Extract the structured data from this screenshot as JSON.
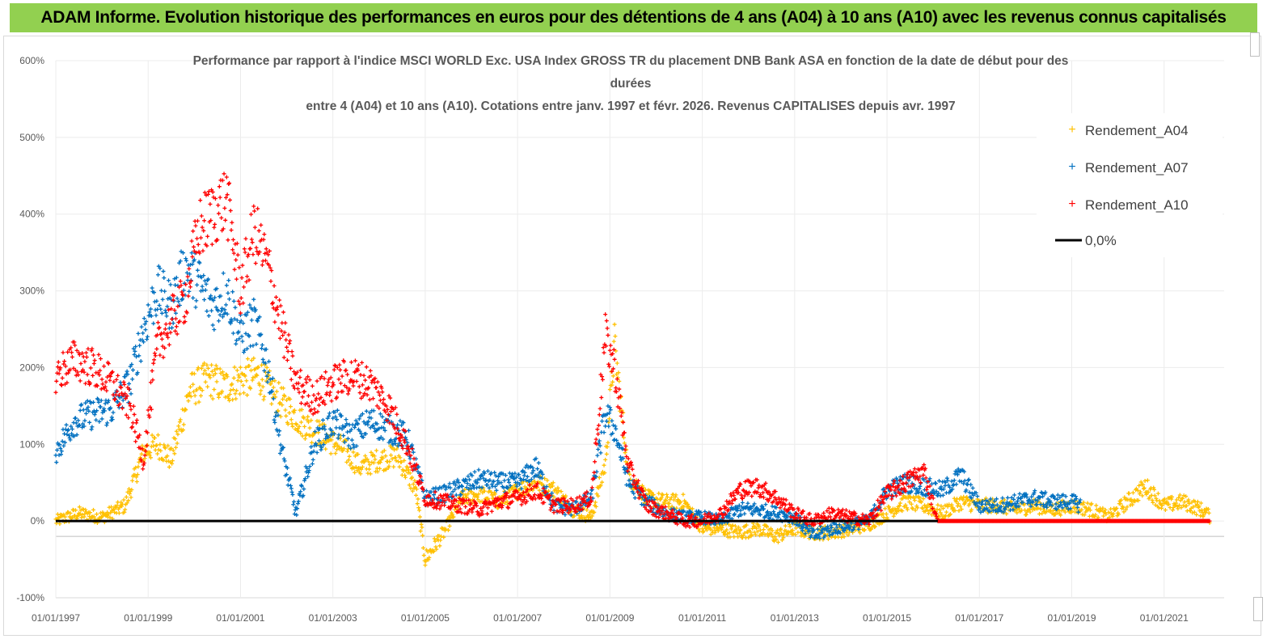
{
  "banner": {
    "title": "ADAM Informe. Evolution historique des performances en euros pour des détentions de 4 ans (A04) à 10 ans (A10) avec les revenus connus capitalisés"
  },
  "colors": {
    "banner_bg": "#92d050",
    "a04": "#ffc000",
    "a07": "#0070c0",
    "a10": "#ff0000",
    "zero": "#000000"
  },
  "chart_data": {
    "type": "scatter",
    "title_lines": [
      "Performance par rapport à l'indice MSCI WORLD Exc. USA Index GROSS TR  du placement DNB Bank ASA en fonction de la date de début pour des",
      "durées",
      "entre 4 (A04) et 10 ans (A10). Cotations entre janv. 1997 et févr. 2026. Revenus CAPITALISES depuis avr. 1997"
    ],
    "x_range": [
      1997.0,
      2022.3
    ],
    "x_ticks": [
      "01/01/1997",
      "01/01/1999",
      "01/01/2001",
      "01/01/2003",
      "01/01/2005",
      "01/01/2007",
      "01/01/2009",
      "01/01/2011",
      "01/01/2013",
      "01/01/2015",
      "01/01/2017",
      "01/01/2019",
      "01/01/2021"
    ],
    "x_tick_values": [
      1997,
      1999,
      2001,
      2003,
      2005,
      2007,
      2009,
      2011,
      2013,
      2015,
      2017,
      2019,
      2021
    ],
    "y_range": [
      -100,
      600
    ],
    "y_ticks": [
      "-100%",
      "0%",
      "100%",
      "200%",
      "300%",
      "400%",
      "500%",
      "600%"
    ],
    "y_tick_values": [
      -100,
      0,
      100,
      200,
      300,
      400,
      500,
      600
    ],
    "legend": [
      "Rendement_A04",
      "Rendement_A07",
      "Rendement_A10",
      "0,0%"
    ],
    "series": [
      {
        "name": "Rendement_A04",
        "x": [
          1997.0,
          1997.5,
          1998.0,
          1998.5,
          1998.9,
          1999.2,
          1999.5,
          1999.9,
          2000.3,
          2000.7,
          2001.0,
          2001.4,
          2001.8,
          2002.3,
          2002.8,
          2003.2,
          2003.6,
          2004.0,
          2004.4,
          2004.8,
          2005.0,
          2005.4,
          2005.8,
          2006.2,
          2006.6,
          2007.0,
          2007.4,
          2007.8,
          2008.2,
          2008.6,
          2008.9,
          2009.1,
          2009.4,
          2009.8,
          2010.2,
          2010.6,
          2011.0,
          2011.4,
          2011.8,
          2012.2,
          2012.6,
          2013.0,
          2013.4,
          2013.8,
          2014.2,
          2014.6,
          2015.0,
          2015.4,
          2015.8,
          2016.2,
          2016.6,
          2017.0,
          2017.4,
          2017.8,
          2018.2,
          2018.6,
          2019.0,
          2019.4,
          2019.8,
          2020.2,
          2020.6,
          2021.0,
          2021.4,
          2021.8,
          2022.0
        ],
        "y": [
          0,
          10,
          5,
          20,
          90,
          100,
          80,
          170,
          185,
          175,
          185,
          190,
          160,
          130,
          110,
          95,
          70,
          80,
          85,
          40,
          -50,
          -15,
          30,
          35,
          25,
          40,
          50,
          40,
          15,
          5,
          75,
          230,
          60,
          30,
          25,
          25,
          -10,
          -10,
          -15,
          -10,
          -20,
          -10,
          -15,
          -15,
          -10,
          -5,
          10,
          25,
          20,
          10,
          25,
          20,
          20,
          15,
          20,
          15,
          20,
          15,
          5,
          25,
          45,
          20,
          25,
          15,
          5
        ]
      },
      {
        "name": "Rendement_A07",
        "x": [
          1997.0,
          1997.4,
          1997.8,
          1998.2,
          1998.6,
          1998.9,
          1999.2,
          1999.5,
          1999.8,
          2000.1,
          2000.4,
          2000.7,
          2001.0,
          2001.3,
          2001.6,
          2001.9,
          2002.2,
          2002.6,
          2003.0,
          2003.4,
          2003.8,
          2004.2,
          2004.6,
          2005.0,
          2005.4,
          2005.8,
          2006.2,
          2006.6,
          2007.0,
          2007.4,
          2007.8,
          2008.2,
          2008.6,
          2008.9,
          2009.1,
          2009.4,
          2009.8,
          2010.2,
          2010.6,
          2011.0,
          2011.4,
          2011.8,
          2012.2,
          2012.6,
          2013.0,
          2013.4,
          2013.8,
          2014.2,
          2014.6,
          2015.0,
          2015.4,
          2015.8,
          2016.2,
          2016.6,
          2017.0,
          2017.4,
          2017.8,
          2018.2,
          2018.6,
          2019.0,
          2019.2
        ],
        "y": [
          90,
          130,
          140,
          145,
          180,
          250,
          300,
          280,
          330,
          310,
          280,
          300,
          240,
          260,
          200,
          90,
          10,
          100,
          130,
          110,
          130,
          120,
          110,
          30,
          35,
          45,
          55,
          50,
          50,
          70,
          20,
          15,
          30,
          140,
          120,
          50,
          25,
          10,
          5,
          5,
          0,
          15,
          15,
          10,
          5,
          -20,
          -10,
          -5,
          0,
          40,
          50,
          45,
          40,
          60,
          20,
          20,
          25,
          30,
          25,
          25,
          20
        ]
      },
      {
        "name": "Rendement_A10",
        "x": [
          1997.0,
          1997.4,
          1997.8,
          1998.2,
          1998.6,
          1998.9,
          1999.2,
          1999.5,
          1999.8,
          2000.1,
          2000.4,
          2000.7,
          2001.0,
          2001.3,
          2001.6,
          2001.9,
          2002.2,
          2002.6,
          2003.0,
          2003.4,
          2003.8,
          2004.2,
          2004.6,
          2005.0,
          2005.4,
          2005.8,
          2006.2,
          2006.6,
          2007.0,
          2007.4,
          2007.8,
          2008.2,
          2008.6,
          2008.9,
          2009.1,
          2009.4,
          2009.8,
          2010.2,
          2010.6,
          2011.0,
          2011.4,
          2011.8,
          2012.2,
          2012.6,
          2013.0,
          2013.4,
          2013.8,
          2014.2,
          2014.6,
          2015.0,
          2015.4,
          2015.8,
          2016.1,
          2016.5,
          2017.0,
          2018.0,
          2019.0,
          2020.0,
          2021.0,
          2022.0
        ],
        "y": [
          190,
          210,
          200,
          180,
          150,
          80,
          230,
          260,
          290,
          380,
          400,
          420,
          300,
          380,
          330,
          250,
          180,
          160,
          180,
          190,
          180,
          150,
          100,
          30,
          25,
          20,
          15,
          25,
          30,
          40,
          20,
          20,
          30,
          240,
          200,
          70,
          20,
          10,
          0,
          0,
          10,
          40,
          45,
          30,
          10,
          0,
          10,
          5,
          0,
          35,
          50,
          65,
          0,
          0,
          0,
          0,
          0,
          0,
          0,
          0
        ]
      }
    ]
  }
}
